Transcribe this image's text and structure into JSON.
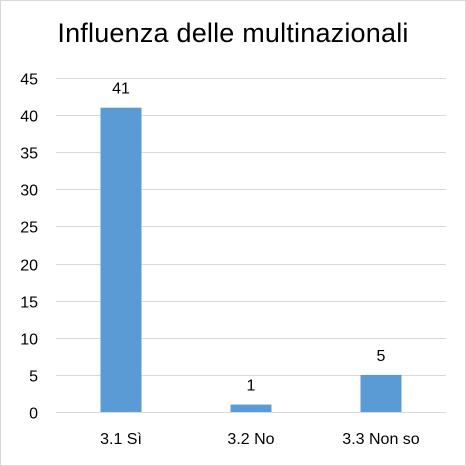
{
  "chart_data": {
    "type": "bar",
    "title": "Influenza delle multinazionali",
    "categories": [
      "3.1 Sì",
      "3.2 No",
      "3.3 Non so"
    ],
    "values": [
      41,
      1,
      5
    ],
    "data_labels": [
      "41",
      "1",
      "5"
    ],
    "ylim": [
      0,
      45
    ],
    "yticks": [
      0,
      5,
      10,
      15,
      20,
      25,
      30,
      35,
      40,
      45
    ],
    "xlabel": "",
    "ylabel": "",
    "grid": true,
    "bar_color": "#5b9bd5",
    "grid_color": "#d9d9d9"
  }
}
